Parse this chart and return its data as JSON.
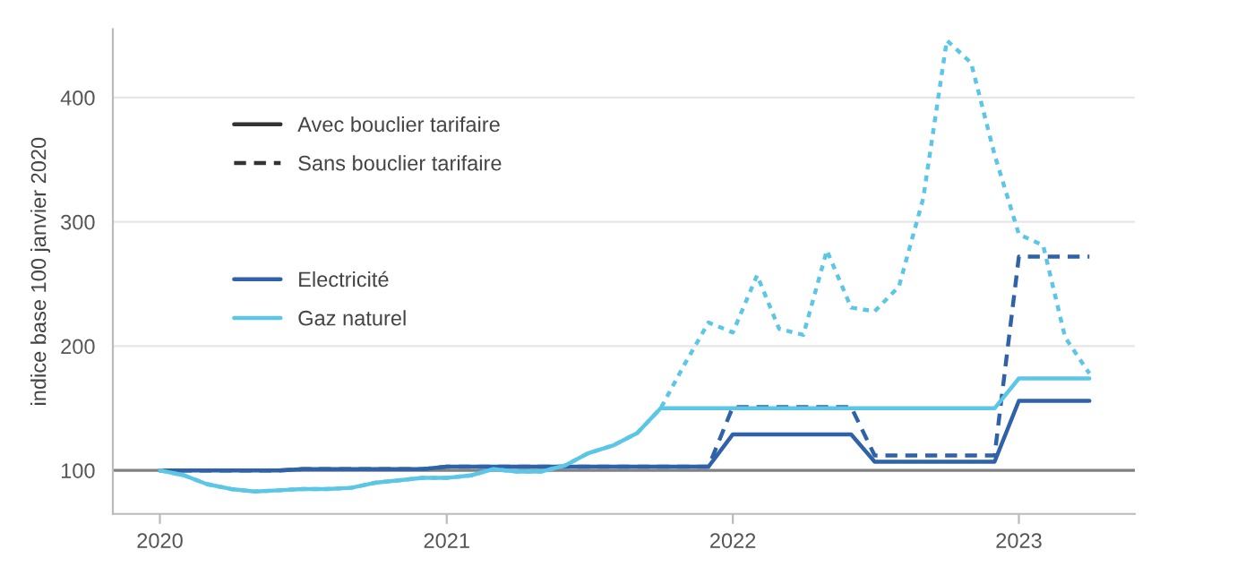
{
  "chart_data": {
    "type": "line",
    "ylabel": "indice base 100 janvier 2020",
    "x": [
      "2020-01",
      "2020-02",
      "2020-03",
      "2020-04",
      "2020-05",
      "2020-06",
      "2020-07",
      "2020-08",
      "2020-09",
      "2020-10",
      "2020-11",
      "2020-12",
      "2021-01",
      "2021-02",
      "2021-03",
      "2021-04",
      "2021-05",
      "2021-06",
      "2021-07",
      "2021-08",
      "2021-09",
      "2021-10",
      "2021-11",
      "2021-12",
      "2022-01",
      "2022-02",
      "2022-03",
      "2022-04",
      "2022-05",
      "2022-06",
      "2022-07",
      "2022-08",
      "2022-09",
      "2022-10",
      "2022-11",
      "2022-12",
      "2023-01",
      "2023-02",
      "2023-03",
      "2023-04"
    ],
    "series": [
      {
        "name": "Electricité",
        "color": "#2f62a8",
        "line_style": "solid",
        "values": [
          100,
          100,
          100,
          100,
          100,
          100,
          101,
          101,
          101,
          101,
          101,
          101,
          103,
          103,
          103,
          103,
          103,
          103,
          103,
          103,
          103,
          103,
          103,
          103,
          129,
          129,
          129,
          129,
          129,
          129,
          107,
          107,
          107,
          107,
          107,
          107,
          156,
          156,
          156,
          156
        ]
      },
      {
        "color": "#2f62a8",
        "line_style": "dashed",
        "values": [
          100,
          100,
          100,
          100,
          100,
          100,
          101,
          101,
          101,
          101,
          101,
          101,
          103,
          103,
          103,
          103,
          103,
          103,
          103,
          103,
          103,
          103,
          103,
          103,
          151,
          151,
          151,
          151,
          151,
          151,
          112,
          112,
          112,
          112,
          112,
          112,
          272,
          272,
          272,
          272
        ]
      },
      {
        "name": "Gaz naturel",
        "color": "#5cc6e6",
        "line_style": "solid",
        "values": [
          100,
          96,
          89,
          85,
          83,
          84,
          85,
          85,
          86,
          90,
          92,
          94,
          94,
          96,
          101,
          99,
          99,
          104,
          114,
          120,
          130,
          150,
          150,
          150,
          150,
          150,
          150,
          150,
          150,
          150,
          150,
          150,
          150,
          150,
          150,
          150,
          174,
          174,
          174,
          174
        ]
      },
      {
        "color": "#5cc6e6",
        "line_style": "dotted",
        "values": [
          100,
          96,
          89,
          85,
          83,
          84,
          85,
          85,
          86,
          90,
          92,
          94,
          94,
          96,
          101,
          99,
          99,
          104,
          114,
          120,
          130,
          150,
          186,
          219,
          211,
          257,
          214,
          209,
          277,
          231,
          228,
          248,
          319,
          446,
          428,
          354,
          290,
          281,
          207,
          178
        ]
      }
    ],
    "annotations": [
      "Avec bouclier tarifaire",
      "Sans bouclier tarifaire"
    ],
    "xlim": [
      "2019-11-02",
      "2023-05-29"
    ],
    "xticks": [
      {
        "value": "2020-01-01",
        "label": "2020"
      },
      {
        "value": "2021-01-01",
        "label": "2021"
      },
      {
        "value": "2022-01-01",
        "label": "2022"
      },
      {
        "value": "2023-01-01",
        "label": "2023"
      }
    ],
    "ylim": [
      65,
      455
    ],
    "yticks": [
      100,
      200,
      300,
      400
    ],
    "ref_lines": [
      {
        "axis": "y",
        "value": 100,
        "color": "#808080"
      }
    ],
    "grid": "y",
    "legend": "left"
  }
}
